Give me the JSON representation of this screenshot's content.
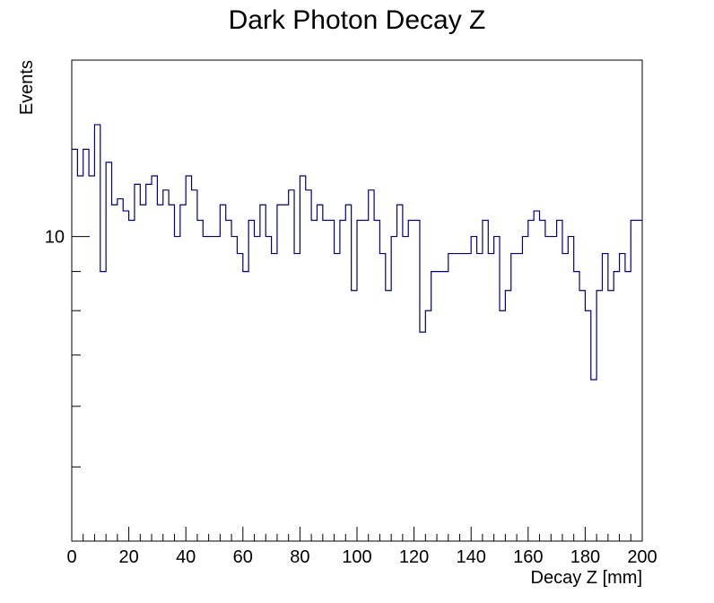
{
  "chart_data": {
    "type": "histogram",
    "title": "Dark Photon Decay Z",
    "xlabel": "Decay Z [mm]",
    "ylabel": "Events",
    "xlim": [
      0,
      200
    ],
    "ylim": [
      4,
      17
    ],
    "yscale": "log",
    "bin_width": 2,
    "x_ticks": [
      0,
      20,
      40,
      60,
      80,
      100,
      120,
      140,
      160,
      180,
      200
    ],
    "x_tick_labels": [
      "0",
      "20",
      "40",
      "60",
      "80",
      "100",
      "120",
      "140",
      "160",
      "180",
      "200"
    ],
    "y_tick_labels": [
      {
        "value": 10,
        "label": "10"
      }
    ],
    "line_color": "#000080",
    "grid": false,
    "series": [
      {
        "name": "Decay Z",
        "values": [
          13,
          12,
          13,
          12,
          14,
          9,
          12.5,
          11,
          11.2,
          10.8,
          10.5,
          11.7,
          11,
          11.7,
          12,
          11,
          11.5,
          11,
          10,
          11,
          12,
          11.5,
          10.5,
          10,
          10,
          10,
          11,
          10.5,
          10,
          9.5,
          9,
          10.5,
          10,
          11,
          10,
          9.5,
          11,
          11,
          11.5,
          9.5,
          12,
          11.5,
          10.5,
          11,
          10.5,
          10.5,
          9.5,
          10.5,
          11,
          8.5,
          10.5,
          10.5,
          11.5,
          10.5,
          9.5,
          8.5,
          10,
          11,
          10,
          10.5,
          10.5,
          7.5,
          8,
          9,
          9,
          9,
          9.5,
          9.5,
          9.5,
          9.5,
          10,
          9.5,
          10.5,
          9.5,
          10,
          8,
          8.5,
          9.5,
          9.5,
          10,
          10.5,
          10.8,
          10.5,
          10,
          10,
          10.5,
          9.5,
          10,
          9,
          8.5,
          8,
          6.5,
          8.5,
          9.5,
          8.5,
          9,
          9.5,
          9,
          10.5,
          10.5
        ]
      }
    ]
  }
}
